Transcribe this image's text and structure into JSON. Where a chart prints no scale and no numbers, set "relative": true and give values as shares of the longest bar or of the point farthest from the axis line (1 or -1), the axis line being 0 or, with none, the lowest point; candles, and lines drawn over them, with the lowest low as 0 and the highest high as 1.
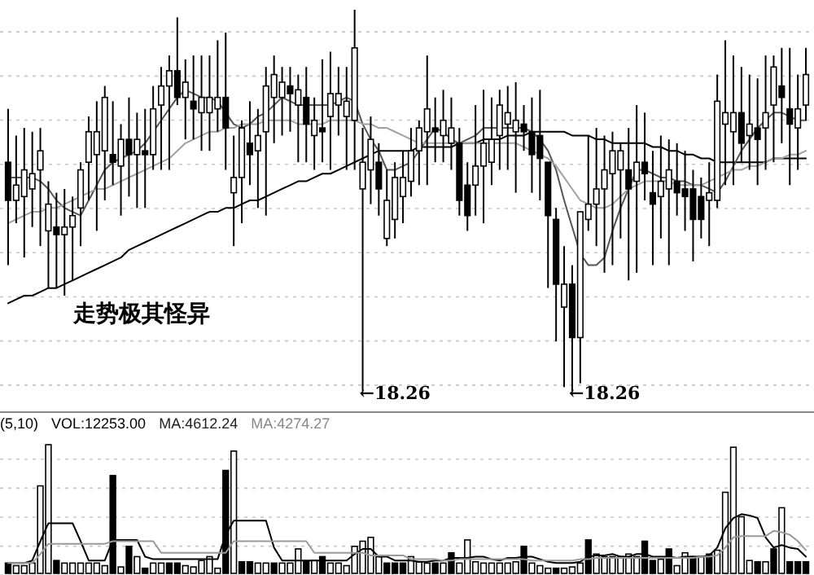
{
  "chart_data": [
    {
      "type": "candlestick",
      "relative": true,
      "grid": "y",
      "categories": [
        null,
        null,
        null,
        null,
        null,
        null,
        null,
        null,
        null,
        null,
        null,
        null,
        null,
        null,
        null,
        null,
        null,
        null,
        null,
        null,
        null,
        null,
        null,
        null,
        null,
        null,
        null,
        null,
        null,
        null,
        null,
        null,
        null,
        null,
        null,
        null,
        null,
        null,
        null,
        null,
        null,
        null,
        null,
        null,
        null,
        null,
        null,
        null,
        null,
        null,
        null,
        null,
        null,
        null,
        null,
        null,
        null,
        null,
        null,
        null,
        null,
        null,
        null,
        null,
        null,
        null,
        null,
        null,
        null,
        null,
        null,
        null,
        null,
        null,
        null,
        null,
        null,
        null,
        null,
        null,
        null,
        null,
        null,
        null,
        null,
        null,
        null,
        null,
        null,
        null,
        null,
        null,
        null,
        null,
        null,
        null,
        null,
        null,
        null,
        null
      ],
      "ohlc": [
        [
          0.6,
          0.74,
          0.33,
          0.5
        ],
        [
          0.5,
          0.67,
          0.44,
          0.54
        ],
        [
          0.51,
          0.69,
          0.35,
          0.58
        ],
        [
          0.53,
          0.68,
          0.43,
          0.57
        ],
        [
          0.58,
          0.69,
          0.38,
          0.63
        ],
        [
          0.42,
          0.55,
          0.27,
          0.49
        ],
        [
          0.43,
          0.52,
          0.27,
          0.41
        ],
        [
          0.41,
          0.53,
          0.25,
          0.43
        ],
        [
          0.43,
          0.51,
          0.29,
          0.46
        ],
        [
          0.48,
          0.6,
          0.38,
          0.58
        ],
        [
          0.6,
          0.72,
          0.5,
          0.68
        ],
        [
          0.62,
          0.76,
          0.42,
          0.68
        ],
        [
          0.63,
          0.8,
          0.5,
          0.77
        ],
        [
          0.62,
          0.76,
          0.54,
          0.6
        ],
        [
          0.59,
          0.7,
          0.46,
          0.66
        ],
        [
          0.66,
          0.77,
          0.51,
          0.62
        ],
        [
          0.62,
          0.73,
          0.48,
          0.66
        ],
        [
          0.63,
          0.74,
          0.48,
          0.62
        ],
        [
          0.62,
          0.8,
          0.58,
          0.74
        ],
        [
          0.75,
          0.85,
          0.58,
          0.8
        ],
        [
          0.8,
          0.88,
          0.58,
          0.84
        ],
        [
          0.84,
          0.98,
          0.75,
          0.77
        ],
        [
          0.77,
          0.87,
          0.66,
          0.81
        ],
        [
          0.76,
          0.88,
          0.66,
          0.74
        ],
        [
          0.73,
          0.88,
          0.63,
          0.77
        ],
        [
          0.73,
          0.88,
          0.63,
          0.77
        ],
        [
          0.74,
          0.92,
          0.68,
          0.77
        ],
        [
          0.77,
          0.94,
          0.58,
          0.69
        ],
        [
          0.52,
          0.67,
          0.38,
          0.56
        ],
        [
          0.56,
          0.71,
          0.44,
          0.69
        ],
        [
          0.65,
          0.76,
          0.54,
          0.62
        ],
        [
          0.63,
          0.74,
          0.48,
          0.67
        ],
        [
          0.68,
          0.85,
          0.46,
          0.8
        ],
        [
          0.77,
          0.88,
          0.65,
          0.83
        ],
        [
          0.77,
          0.85,
          0.67,
          0.81
        ],
        [
          0.8,
          0.85,
          0.68,
          0.78
        ],
        [
          0.75,
          0.83,
          0.6,
          0.79
        ],
        [
          0.77,
          0.85,
          0.6,
          0.7
        ],
        [
          0.67,
          0.77,
          0.58,
          0.71
        ],
        [
          0.69,
          0.87,
          0.6,
          0.68
        ],
        [
          0.72,
          0.89,
          0.58,
          0.78
        ],
        [
          0.75,
          0.85,
          0.67,
          0.78
        ],
        [
          0.72,
          0.85,
          0.58,
          0.76
        ],
        [
          0.71,
          1.0,
          0.58,
          0.9
        ],
        [
          0.53,
          0.69,
          0.0,
          0.6
        ],
        [
          0.58,
          0.72,
          0.49,
          0.66
        ],
        [
          0.6,
          0.65,
          0.46,
          0.53
        ],
        [
          0.4,
          0.58,
          0.38,
          0.5
        ],
        [
          0.45,
          0.6,
          0.4,
          0.56
        ],
        [
          0.51,
          0.63,
          0.44,
          0.56
        ],
        [
          0.55,
          0.69,
          0.51,
          0.63
        ],
        [
          0.63,
          0.71,
          0.54,
          0.69
        ],
        [
          0.68,
          0.88,
          0.54,
          0.74
        ],
        [
          0.69,
          0.77,
          0.6,
          0.68
        ],
        [
          0.67,
          0.79,
          0.6,
          0.71
        ],
        [
          0.65,
          0.77,
          0.58,
          0.69
        ],
        [
          0.65,
          0.69,
          0.46,
          0.5
        ],
        [
          0.54,
          0.6,
          0.42,
          0.46
        ],
        [
          0.54,
          0.75,
          0.46,
          0.59
        ],
        [
          0.59,
          0.79,
          0.44,
          0.65
        ],
        [
          0.6,
          0.77,
          0.54,
          0.66
        ],
        [
          0.67,
          0.79,
          0.58,
          0.75
        ],
        [
          0.7,
          0.8,
          0.58,
          0.73
        ],
        [
          0.68,
          0.81,
          0.52,
          0.71
        ],
        [
          0.7,
          0.75,
          0.63,
          0.68
        ],
        [
          0.68,
          0.77,
          0.52,
          0.62
        ],
        [
          0.67,
          0.79,
          0.5,
          0.61
        ],
        [
          0.6,
          0.6,
          0.27,
          0.46
        ],
        [
          0.45,
          0.48,
          0.13,
          0.28
        ],
        [
          0.22,
          0.38,
          0.01,
          0.28
        ],
        [
          0.28,
          0.33,
          0.0,
          0.14
        ],
        [
          0.14,
          0.47,
          0.02,
          0.47
        ],
        [
          0.45,
          0.67,
          0.42,
          0.49
        ],
        [
          0.49,
          0.69,
          0.38,
          0.53
        ],
        [
          0.53,
          0.67,
          0.31,
          0.58
        ],
        [
          0.57,
          0.68,
          0.33,
          0.63
        ],
        [
          0.58,
          0.65,
          0.4,
          0.63
        ],
        [
          0.58,
          0.69,
          0.29,
          0.53
        ],
        [
          0.55,
          0.75,
          0.31,
          0.6
        ],
        [
          0.6,
          0.73,
          0.5,
          0.57
        ],
        [
          0.52,
          0.63,
          0.33,
          0.49
        ],
        [
          0.51,
          0.67,
          0.4,
          0.55
        ],
        [
          0.53,
          0.66,
          0.33,
          0.58
        ],
        [
          0.55,
          0.65,
          0.46,
          0.52
        ],
        [
          0.53,
          0.63,
          0.42,
          0.51
        ],
        [
          0.53,
          0.58,
          0.34,
          0.45
        ],
        [
          0.51,
          0.56,
          0.4,
          0.45
        ],
        [
          0.5,
          0.6,
          0.38,
          0.52
        ],
        [
          0.5,
          0.83,
          0.48,
          0.76
        ],
        [
          0.7,
          0.92,
          0.54,
          0.73
        ],
        [
          0.68,
          0.88,
          0.54,
          0.73
        ],
        [
          0.73,
          0.85,
          0.6,
          0.65
        ],
        [
          0.67,
          0.83,
          0.58,
          0.7
        ],
        [
          0.69,
          0.82,
          0.54,
          0.66
        ],
        [
          0.69,
          0.88,
          0.58,
          0.73
        ],
        [
          0.75,
          0.88,
          0.6,
          0.85
        ],
        [
          0.8,
          0.9,
          0.65,
          0.77
        ],
        [
          0.74,
          0.9,
          0.54,
          0.7
        ],
        [
          0.69,
          0.83,
          0.58,
          0.74
        ],
        [
          0.75,
          0.9,
          0.71,
          0.83
        ]
      ],
      "series": [
        {
          "type": "line",
          "color": "#000000",
          "values": [
            0.23,
            0.24,
            0.25,
            0.25,
            0.26,
            0.27,
            0.27,
            0.28,
            0.29,
            0.3,
            0.31,
            0.32,
            0.33,
            0.34,
            0.35,
            0.37,
            0.38,
            0.39,
            0.4,
            0.41,
            0.42,
            0.43,
            0.44,
            0.45,
            0.46,
            0.47,
            0.47,
            0.48,
            0.48,
            0.49,
            0.5,
            0.5,
            0.51,
            0.52,
            0.53,
            0.54,
            0.55,
            0.55,
            0.56,
            0.57,
            0.57,
            0.58,
            0.59,
            0.6,
            0.61,
            0.62,
            0.63,
            0.63,
            0.63,
            0.63,
            0.63,
            0.64,
            0.64,
            0.64,
            0.64,
            0.64,
            0.65,
            0.65,
            0.65,
            0.66,
            0.66,
            0.66,
            0.67,
            0.67,
            0.67,
            0.68,
            0.68,
            0.68,
            0.68,
            0.68,
            0.67,
            0.67,
            0.67,
            0.66,
            0.66,
            0.65,
            0.65,
            0.65,
            0.65,
            0.65,
            0.64,
            0.64,
            0.63,
            0.63,
            0.62,
            0.62,
            0.61,
            0.61,
            0.6,
            0.6,
            0.6,
            0.6,
            0.6,
            0.6,
            0.6,
            0.61,
            0.61,
            0.61,
            0.61,
            0.61
          ]
        },
        {
          "type": "line",
          "color": "#555555",
          "values": [
            0.56,
            0.56,
            0.56,
            0.56,
            0.55,
            0.53,
            0.5,
            0.48,
            0.47,
            0.46,
            0.5,
            0.54,
            0.58,
            0.6,
            0.61,
            0.62,
            0.63,
            0.65,
            0.68,
            0.71,
            0.74,
            0.77,
            0.79,
            0.78,
            0.77,
            0.77,
            0.76,
            0.73,
            0.7,
            0.69,
            0.7,
            0.72,
            0.73,
            0.75,
            0.77,
            0.76,
            0.75,
            0.75,
            0.75,
            0.75,
            0.75,
            0.76,
            0.77,
            0.76,
            0.7,
            0.66,
            0.63,
            0.58,
            0.58,
            0.59,
            0.6,
            0.63,
            0.66,
            0.69,
            0.68,
            0.66,
            0.65,
            0.66,
            0.67,
            0.69,
            0.69,
            0.69,
            0.69,
            0.69,
            0.69,
            0.68,
            0.66,
            0.63,
            0.58,
            0.5,
            0.43,
            0.36,
            0.33,
            0.33,
            0.35,
            0.42,
            0.48,
            0.53,
            0.58,
            0.58,
            0.57,
            0.56,
            0.56,
            0.55,
            0.55,
            0.54,
            0.54,
            0.53,
            0.52,
            0.55,
            0.59,
            0.63,
            0.66,
            0.69,
            0.71,
            0.73,
            0.73,
            0.72,
            0.71,
            0.71
          ]
        },
        {
          "type": "line",
          "color": "#a0a0a0",
          "values": [
            0.44,
            0.45,
            0.46,
            0.47,
            0.47,
            0.48,
            0.48,
            0.49,
            0.5,
            0.51,
            0.52,
            0.53,
            0.53,
            0.54,
            0.55,
            0.56,
            0.57,
            0.58,
            0.59,
            0.6,
            0.61,
            0.63,
            0.65,
            0.66,
            0.67,
            0.68,
            0.68,
            0.69,
            0.69,
            0.7,
            0.7,
            0.7,
            0.71,
            0.71,
            0.71,
            0.71,
            0.7,
            0.7,
            0.7,
            0.7,
            0.71,
            0.71,
            0.71,
            0.71,
            0.7,
            0.7,
            0.69,
            0.69,
            0.68,
            0.67,
            0.66,
            0.65,
            0.65,
            0.65,
            0.65,
            0.65,
            0.65,
            0.65,
            0.65,
            0.65,
            0.65,
            0.65,
            0.65,
            0.65,
            0.64,
            0.63,
            0.62,
            0.61,
            0.59,
            0.56,
            0.53,
            0.5,
            0.49,
            0.48,
            0.48,
            0.49,
            0.51,
            0.53,
            0.54,
            0.55,
            0.55,
            0.55,
            0.55,
            0.54,
            0.54,
            0.54,
            0.54,
            0.55,
            0.56,
            0.57,
            0.58,
            0.58,
            0.59,
            0.59,
            0.6,
            0.61,
            0.61,
            0.62,
            0.62,
            0.63
          ]
        }
      ],
      "annotations": [
        "走势极其怪异",
        "←18.26",
        "←18.26"
      ]
    },
    {
      "type": "bar",
      "relative": true,
      "grid": "y",
      "categories": [
        null,
        null,
        null,
        null,
        null,
        null,
        null,
        null,
        null,
        null,
        null,
        null,
        null,
        null,
        null,
        null,
        null,
        null,
        null,
        null,
        null,
        null,
        null,
        null,
        null,
        null,
        null,
        null,
        null,
        null,
        null,
        null,
        null,
        null,
        null,
        null,
        null,
        null,
        null,
        null,
        null,
        null,
        null,
        null,
        null,
        null,
        null,
        null,
        null,
        null,
        null,
        null,
        null,
        null,
        null,
        null,
        null,
        null,
        null,
        null,
        null,
        null,
        null,
        null,
        null,
        null,
        null,
        null,
        null,
        null,
        null,
        null,
        null,
        null,
        null,
        null,
        null,
        null,
        null,
        null,
        null,
        null,
        null,
        null,
        null,
        null,
        null,
        null,
        null,
        null,
        null,
        null,
        null,
        null,
        null,
        null,
        null,
        null,
        null,
        null
      ],
      "series": [
        {
          "type": "bar",
          "values": [
            0.08,
            0.06,
            0.06,
            0.08,
            0.68,
            1,
            0.1,
            0.08,
            0.08,
            0.08,
            0.08,
            0.08,
            0.06,
            0.76,
            0.05,
            0.21,
            0.13,
            0.04,
            0.08,
            0.08,
            0.08,
            0.08,
            0.06,
            0.05,
            0.1,
            0.13,
            0.04,
            0.8,
            0.95,
            0.09,
            0.09,
            0.08,
            0.08,
            0.08,
            0.08,
            0.08,
            0.19,
            0.09,
            0.1,
            0.13,
            0.08,
            0.08,
            0.06,
            0.21,
            0.25,
            0.28,
            0.13,
            0.08,
            0.08,
            0.08,
            0.13,
            0.09,
            0.08,
            0.08,
            0.08,
            0.16,
            0.08,
            0.26,
            0.09,
            0.08,
            0.08,
            0.08,
            0.08,
            0.09,
            0.21,
            0.08,
            0.06,
            0.04,
            0.04,
            0.04,
            0.05,
            0.08,
            0.26,
            0.15,
            0.13,
            0.13,
            0.13,
            0.15,
            0.13,
            0.25,
            0.1,
            0.11,
            0.19,
            0.06,
            0.16,
            0.13,
            0.13,
            0.15,
            0.18,
            0.63,
            0.98,
            0.44,
            0.1,
            0.09,
            0.09,
            0.19,
            0.51,
            0.09,
            0.09,
            0.09
          ],
          "colors": [
            "#000000",
            "#ffffff",
            "#ffffff",
            "#ffffff",
            "#ffffff",
            "#ffffff",
            "#000000",
            "#ffffff",
            "#ffffff",
            "#ffffff",
            "#ffffff",
            "#ffffff",
            "#ffffff",
            "#000000",
            "#ffffff",
            "#000000",
            "#ffffff",
            "#000000",
            "#ffffff",
            "#ffffff",
            "#000000",
            "#000000",
            "#ffffff",
            "#ffffff",
            "#ffffff",
            "#ffffff",
            "#ffffff",
            "#000000",
            "#ffffff",
            "#000000",
            "#000000",
            "#ffffff",
            "#ffffff",
            "#000000",
            "#ffffff",
            "#ffffff",
            "#ffffff",
            "#000000",
            "#ffffff",
            "#000000",
            "#ffffff",
            "#ffffff",
            "#ffffff",
            "#ffffff",
            "#ffffff",
            "#ffffff",
            "#ffffff",
            "#000000",
            "#000000",
            "#000000",
            "#ffffff",
            "#ffffff",
            "#ffffff",
            "#000000",
            "#ffffff",
            "#000000",
            "#ffffff",
            "#ffffff",
            "#ffffff",
            "#ffffff",
            "#ffffff",
            "#ffffff",
            "#ffffff",
            "#ffffff",
            "#000000",
            "#ffffff",
            "#ffffff",
            "#ffffff",
            "#000000",
            "#ffffff",
            "#ffffff",
            "#ffffff",
            "#000000",
            "#ffffff",
            "#ffffff",
            "#ffffff",
            "#ffffff",
            "#ffffff",
            "#ffffff",
            "#000000",
            "#000000",
            "#ffffff",
            "#000000",
            "#ffffff",
            "#ffffff",
            "#000000",
            "#ffffff",
            "#000000",
            "#ffffff",
            "#ffffff",
            "#ffffff",
            "#ffffff",
            "#ffffff",
            "#000000",
            "#ffffff",
            "#000000",
            "#ffffff",
            "#000000",
            "#000000",
            "#000000"
          ]
        },
        {
          "type": "line",
          "color": "#000000",
          "values": [
            0.08,
            0.08,
            0.08,
            0.1,
            0.25,
            0.39,
            0.39,
            0.39,
            0.39,
            0.25,
            0.1,
            0.1,
            0.1,
            0.26,
            0.26,
            0.26,
            0.26,
            0.13,
            0.11,
            0.11,
            0.11,
            0.11,
            0.11,
            0.11,
            0.11,
            0.11,
            0.11,
            0.3,
            0.41,
            0.41,
            0.41,
            0.41,
            0.41,
            0.2,
            0.1,
            0.1,
            0.1,
            0.1,
            0.1,
            0.1,
            0.1,
            0.1,
            0.1,
            0.15,
            0.19,
            0.19,
            0.13,
            0.13,
            0.1,
            0.1,
            0.1,
            0.09,
            0.09,
            0.1,
            0.1,
            0.12,
            0.12,
            0.12,
            0.13,
            0.13,
            0.11,
            0.1,
            0.12,
            0.12,
            0.13,
            0.13,
            0.11,
            0.09,
            0.08,
            0.08,
            0.08,
            0.09,
            0.13,
            0.14,
            0.14,
            0.15,
            0.13,
            0.13,
            0.15,
            0.15,
            0.13,
            0.13,
            0.13,
            0.12,
            0.13,
            0.13,
            0.13,
            0.14,
            0.2,
            0.35,
            0.43,
            0.46,
            0.45,
            0.43,
            0.28,
            0.2,
            0.22,
            0.2,
            0.19,
            0.13
          ]
        },
        {
          "type": "line",
          "color": "#999999",
          "values": [
            0.08,
            0.08,
            0.08,
            0.08,
            0.15,
            0.23,
            0.23,
            0.23,
            0.23,
            0.23,
            0.23,
            0.23,
            0.23,
            0.25,
            0.25,
            0.25,
            0.25,
            0.25,
            0.25,
            0.16,
            0.16,
            0.16,
            0.16,
            0.16,
            0.16,
            0.16,
            0.16,
            0.16,
            0.25,
            0.25,
            0.25,
            0.25,
            0.25,
            0.25,
            0.25,
            0.25,
            0.25,
            0.25,
            0.16,
            0.16,
            0.16,
            0.16,
            0.16,
            0.16,
            0.16,
            0.14,
            0.14,
            0.14,
            0.14,
            0.14,
            0.11,
            0.11,
            0.11,
            0.11,
            0.1,
            0.1,
            0.11,
            0.11,
            0.11,
            0.11,
            0.11,
            0.11,
            0.11,
            0.11,
            0.11,
            0.1,
            0.1,
            0.1,
            0.1,
            0.1,
            0.1,
            0.11,
            0.11,
            0.12,
            0.12,
            0.12,
            0.12,
            0.12,
            0.12,
            0.12,
            0.12,
            0.12,
            0.12,
            0.12,
            0.12,
            0.12,
            0.13,
            0.13,
            0.14,
            0.2,
            0.28,
            0.29,
            0.29,
            0.29,
            0.29,
            0.33,
            0.32,
            0.3,
            0.25,
            0.18
          ]
        }
      ],
      "annotations": [
        "(5,10)",
        "VOL:12253.00",
        "MA:4612.24",
        "MA:4274.27"
      ]
    }
  ]
}
